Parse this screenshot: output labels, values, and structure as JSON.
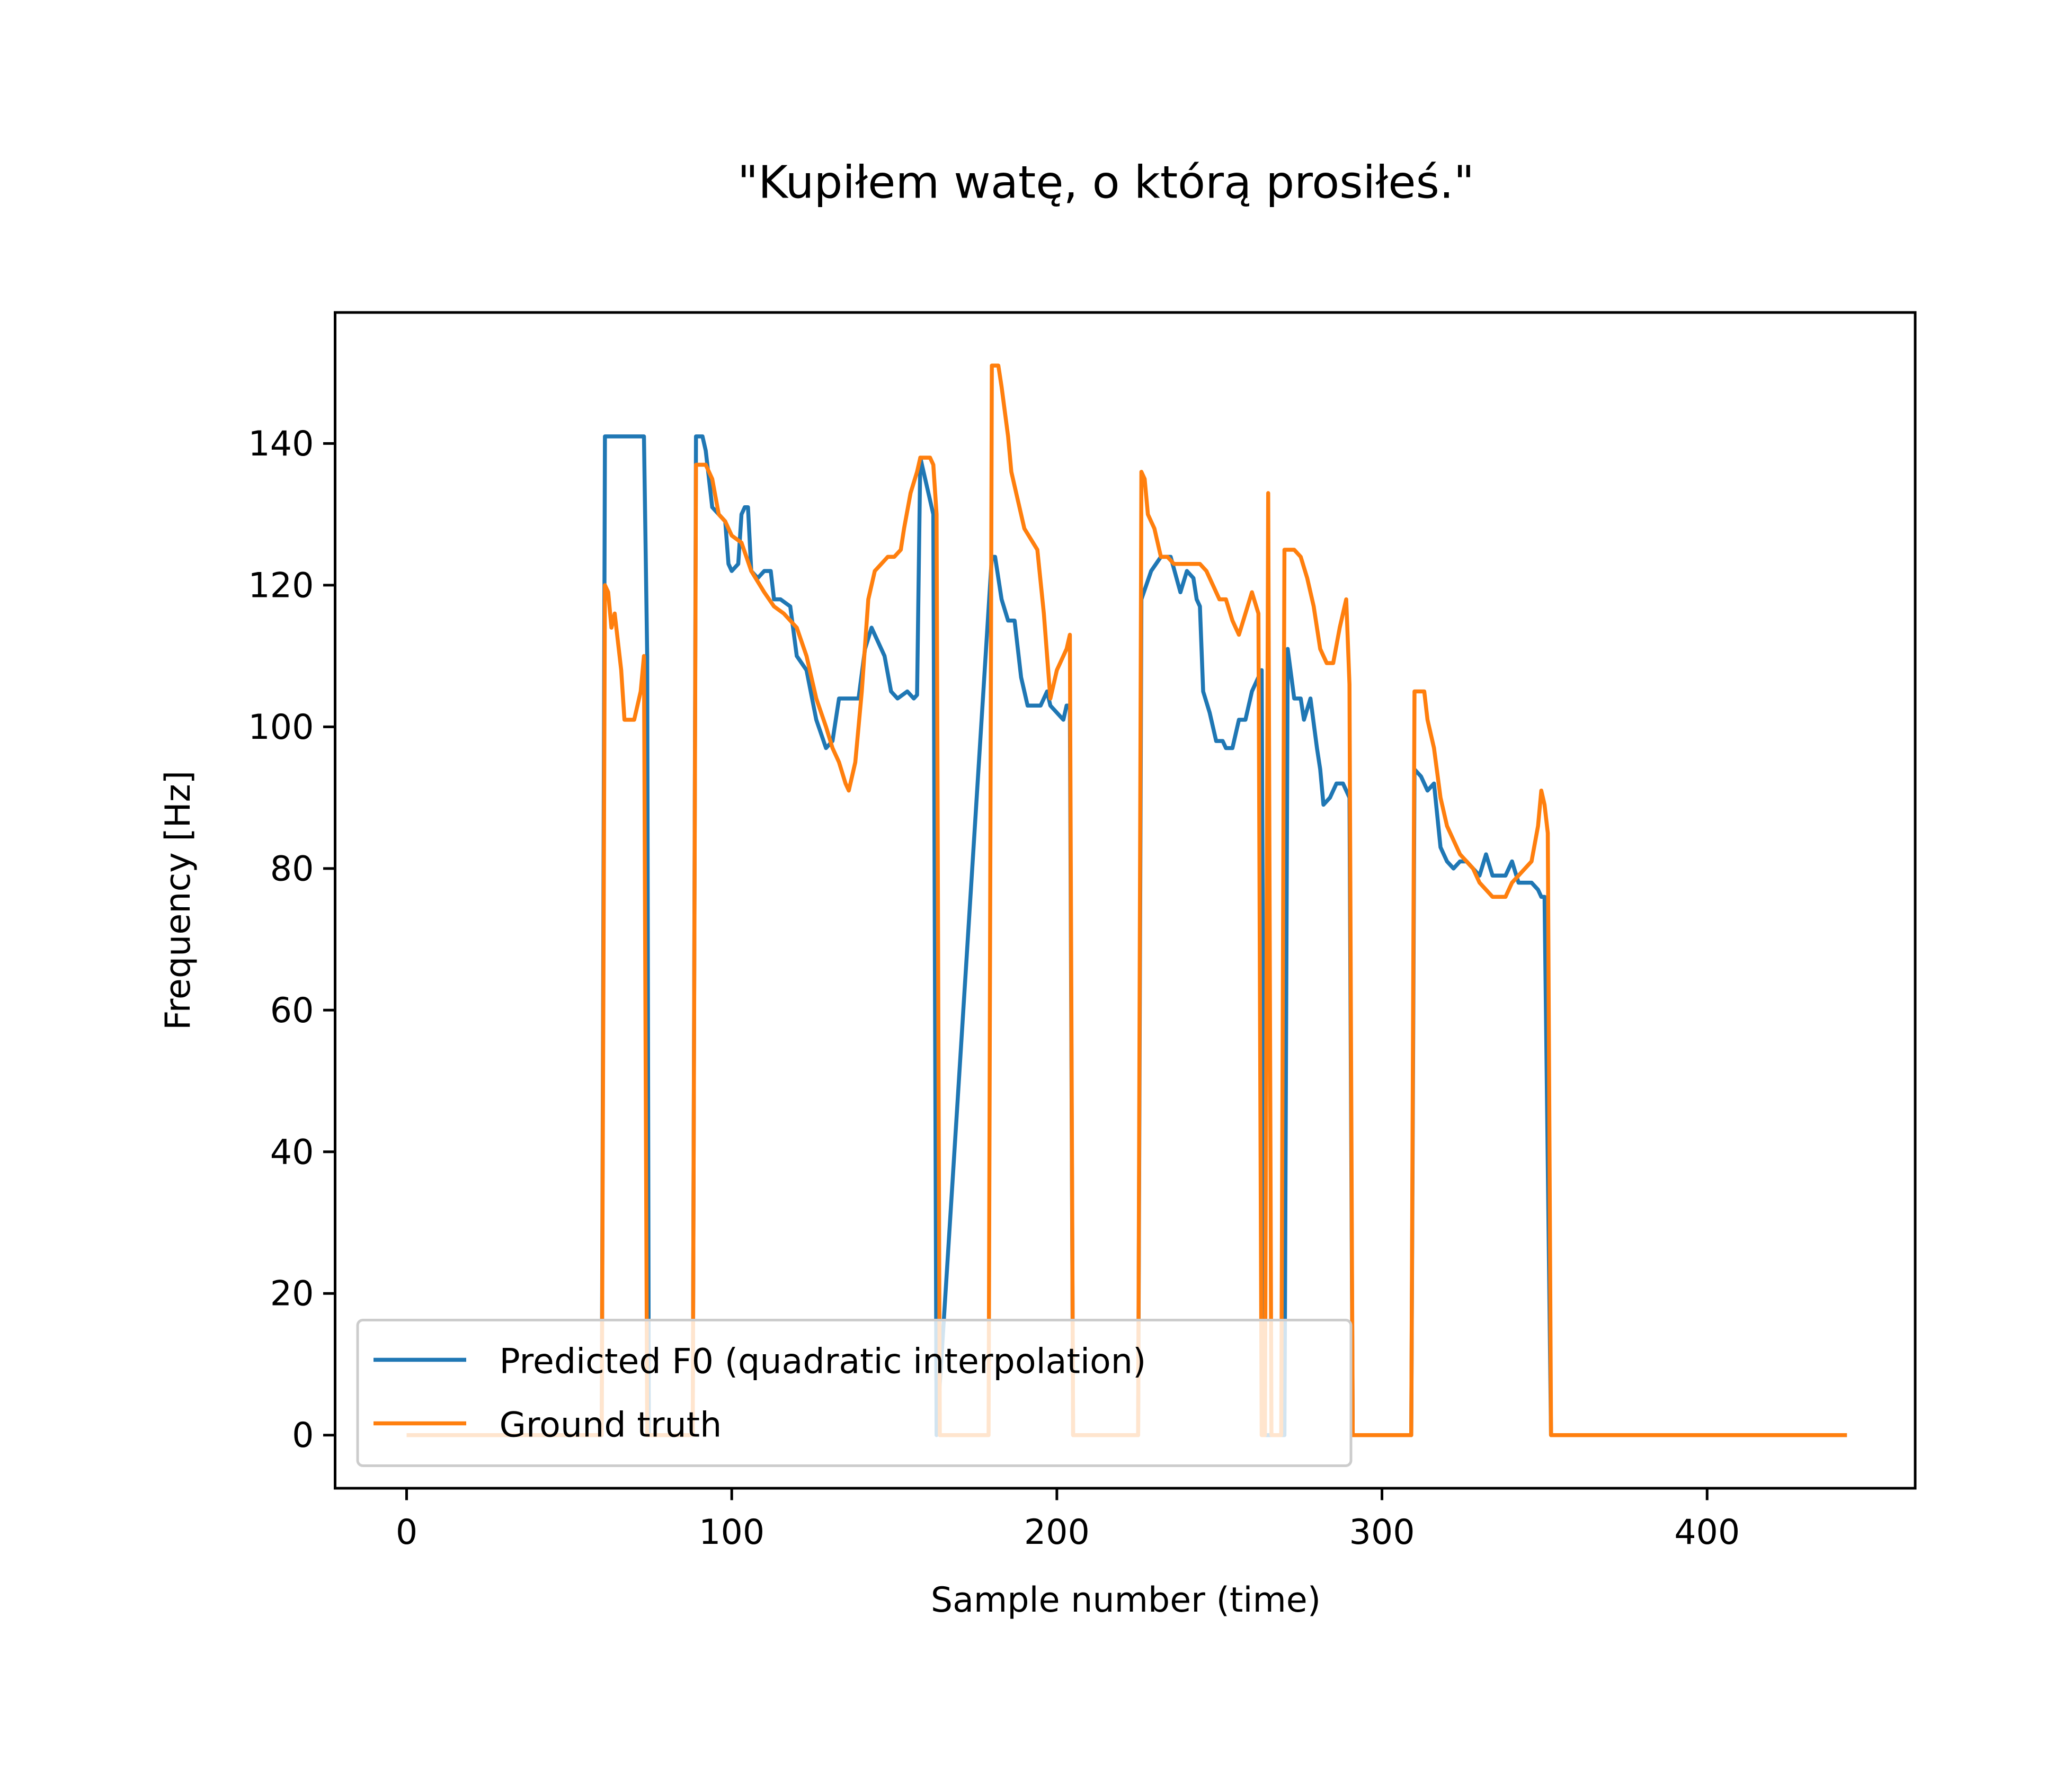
{
  "chart_data": {
    "type": "line",
    "title": "\"Kupiłem watę, o którą prosiłeś.\"",
    "xlabel": "Sample number (time)",
    "ylabel": "Frequency [Hz]",
    "xlim": [
      -22,
      464
    ],
    "ylim": [
      -7.5,
      158.5
    ],
    "xticks": [
      0,
      100,
      200,
      300,
      400
    ],
    "yticks": [
      0,
      20,
      40,
      60,
      80,
      100,
      120,
      140
    ],
    "grid": false,
    "legend": "lower left",
    "series": [
      {
        "name": "Predicted F0 (quadratic interpolation)",
        "color": "#1f77b4",
        "x": [
          0,
          60,
          61,
          73,
          74,
          74.5,
          88,
          89,
          91,
          92,
          94,
          96,
          98,
          99,
          100,
          102,
          103,
          104,
          105,
          106,
          108,
          110,
          112,
          113,
          115,
          118,
          120,
          123,
          126,
          129,
          131,
          133,
          135,
          137,
          139,
          141,
          143,
          145,
          147,
          149,
          151,
          154,
          156,
          157,
          158,
          162,
          163,
          180,
          181,
          183,
          185,
          187,
          189,
          191,
          193,
          195,
          197,
          198,
          200,
          202,
          203,
          204,
          205,
          225,
          226,
          229,
          232,
          235,
          238,
          240,
          242,
          243,
          244,
          245,
          247,
          249,
          251,
          252,
          254,
          256,
          258,
          260,
          263,
          264,
          270,
          271,
          273,
          275,
          276,
          278,
          280,
          281,
          282,
          284,
          286,
          288,
          290,
          291,
          309,
          310,
          312,
          314,
          316,
          318,
          320,
          322,
          324,
          326,
          328,
          330,
          332,
          334,
          336,
          338,
          340,
          342,
          344,
          346,
          348,
          349,
          350,
          352,
          443
        ],
        "values": [
          0,
          0,
          141,
          141,
          110,
          0,
          0,
          141,
          141,
          139,
          131,
          130,
          129,
          123,
          122,
          123,
          130,
          131,
          131,
          122,
          121,
          122,
          122,
          118,
          118,
          117,
          110,
          108,
          101,
          97,
          98,
          104,
          104,
          104,
          104,
          111,
          114,
          112,
          110,
          105,
          104,
          105,
          104,
          104.5,
          138,
          130,
          0,
          124,
          124,
          118,
          115,
          115,
          107,
          103,
          103,
          103,
          105,
          103,
          102,
          101,
          103,
          103,
          0,
          0,
          118,
          122,
          124,
          124,
          119,
          122,
          121,
          118,
          117,
          105,
          102,
          98,
          98,
          97,
          97,
          101,
          101,
          105,
          108,
          0,
          0,
          111,
          104,
          104,
          101,
          104,
          97,
          94,
          89,
          90,
          92,
          92,
          90,
          0,
          0,
          94,
          93,
          91,
          92,
          83,
          81,
          80,
          81,
          81,
          80,
          79,
          82,
          79,
          79,
          79,
          81,
          78,
          78,
          78,
          77,
          76,
          76,
          0,
          0
        ]
      },
      {
        "name": "Ground truth",
        "color": "#ff7f0e",
        "x": [
          0,
          60,
          61,
          62,
          63,
          64,
          66,
          67,
          70,
          72,
          73,
          74,
          88,
          89,
          92,
          94,
          96,
          98,
          100,
          103,
          106,
          110,
          113,
          116,
          120,
          123,
          126,
          129,
          131,
          133,
          135,
          136,
          138,
          140,
          142,
          144,
          146,
          148,
          150,
          152,
          153,
          155,
          157,
          158,
          161,
          162,
          163,
          164,
          179,
          180,
          182,
          183,
          185,
          186,
          188,
          190,
          194,
          196,
          198,
          200,
          203,
          204,
          205,
          225,
          226,
          227,
          228,
          230,
          232,
          234,
          236,
          240,
          244,
          246,
          248,
          250,
          252,
          254,
          256,
          258,
          260,
          262,
          263,
          264,
          265,
          266,
          269,
          270,
          273,
          275,
          277,
          279,
          281,
          283,
          285,
          287,
          289,
          290,
          291,
          309,
          310,
          313,
          314,
          316,
          318,
          320,
          322,
          324,
          326,
          328,
          330,
          332,
          334,
          336,
          338,
          340,
          342,
          344,
          346,
          348,
          349,
          350,
          351,
          352,
          443
        ],
        "values": [
          0,
          0,
          120,
          119,
          114,
          116,
          108,
          101,
          101,
          105,
          110,
          0,
          0,
          137,
          137,
          135,
          130,
          129,
          127,
          126,
          122,
          119,
          117,
          116,
          114,
          110,
          104,
          100,
          97,
          95,
          92,
          91,
          95,
          105,
          118,
          122,
          123,
          124,
          124,
          125,
          128,
          133,
          136,
          138,
          138,
          137,
          130,
          0,
          0,
          151,
          151,
          148,
          141,
          136,
          132,
          128,
          125,
          116,
          104,
          108,
          111,
          113,
          0,
          0,
          136,
          135,
          130,
          128,
          124,
          124,
          123,
          123,
          123,
          122,
          120,
          118,
          118,
          115,
          113,
          116,
          119,
          116,
          0,
          0,
          133,
          0,
          0,
          125,
          125,
          124,
          121,
          117,
          111,
          109,
          109,
          114,
          118,
          106,
          0,
          0,
          105,
          105,
          101,
          97,
          90,
          86,
          84,
          82,
          81,
          80,
          78,
          77,
          76,
          76,
          76,
          78,
          79,
          80,
          81,
          86,
          91,
          89,
          85,
          0,
          0
        ]
      }
    ]
  }
}
